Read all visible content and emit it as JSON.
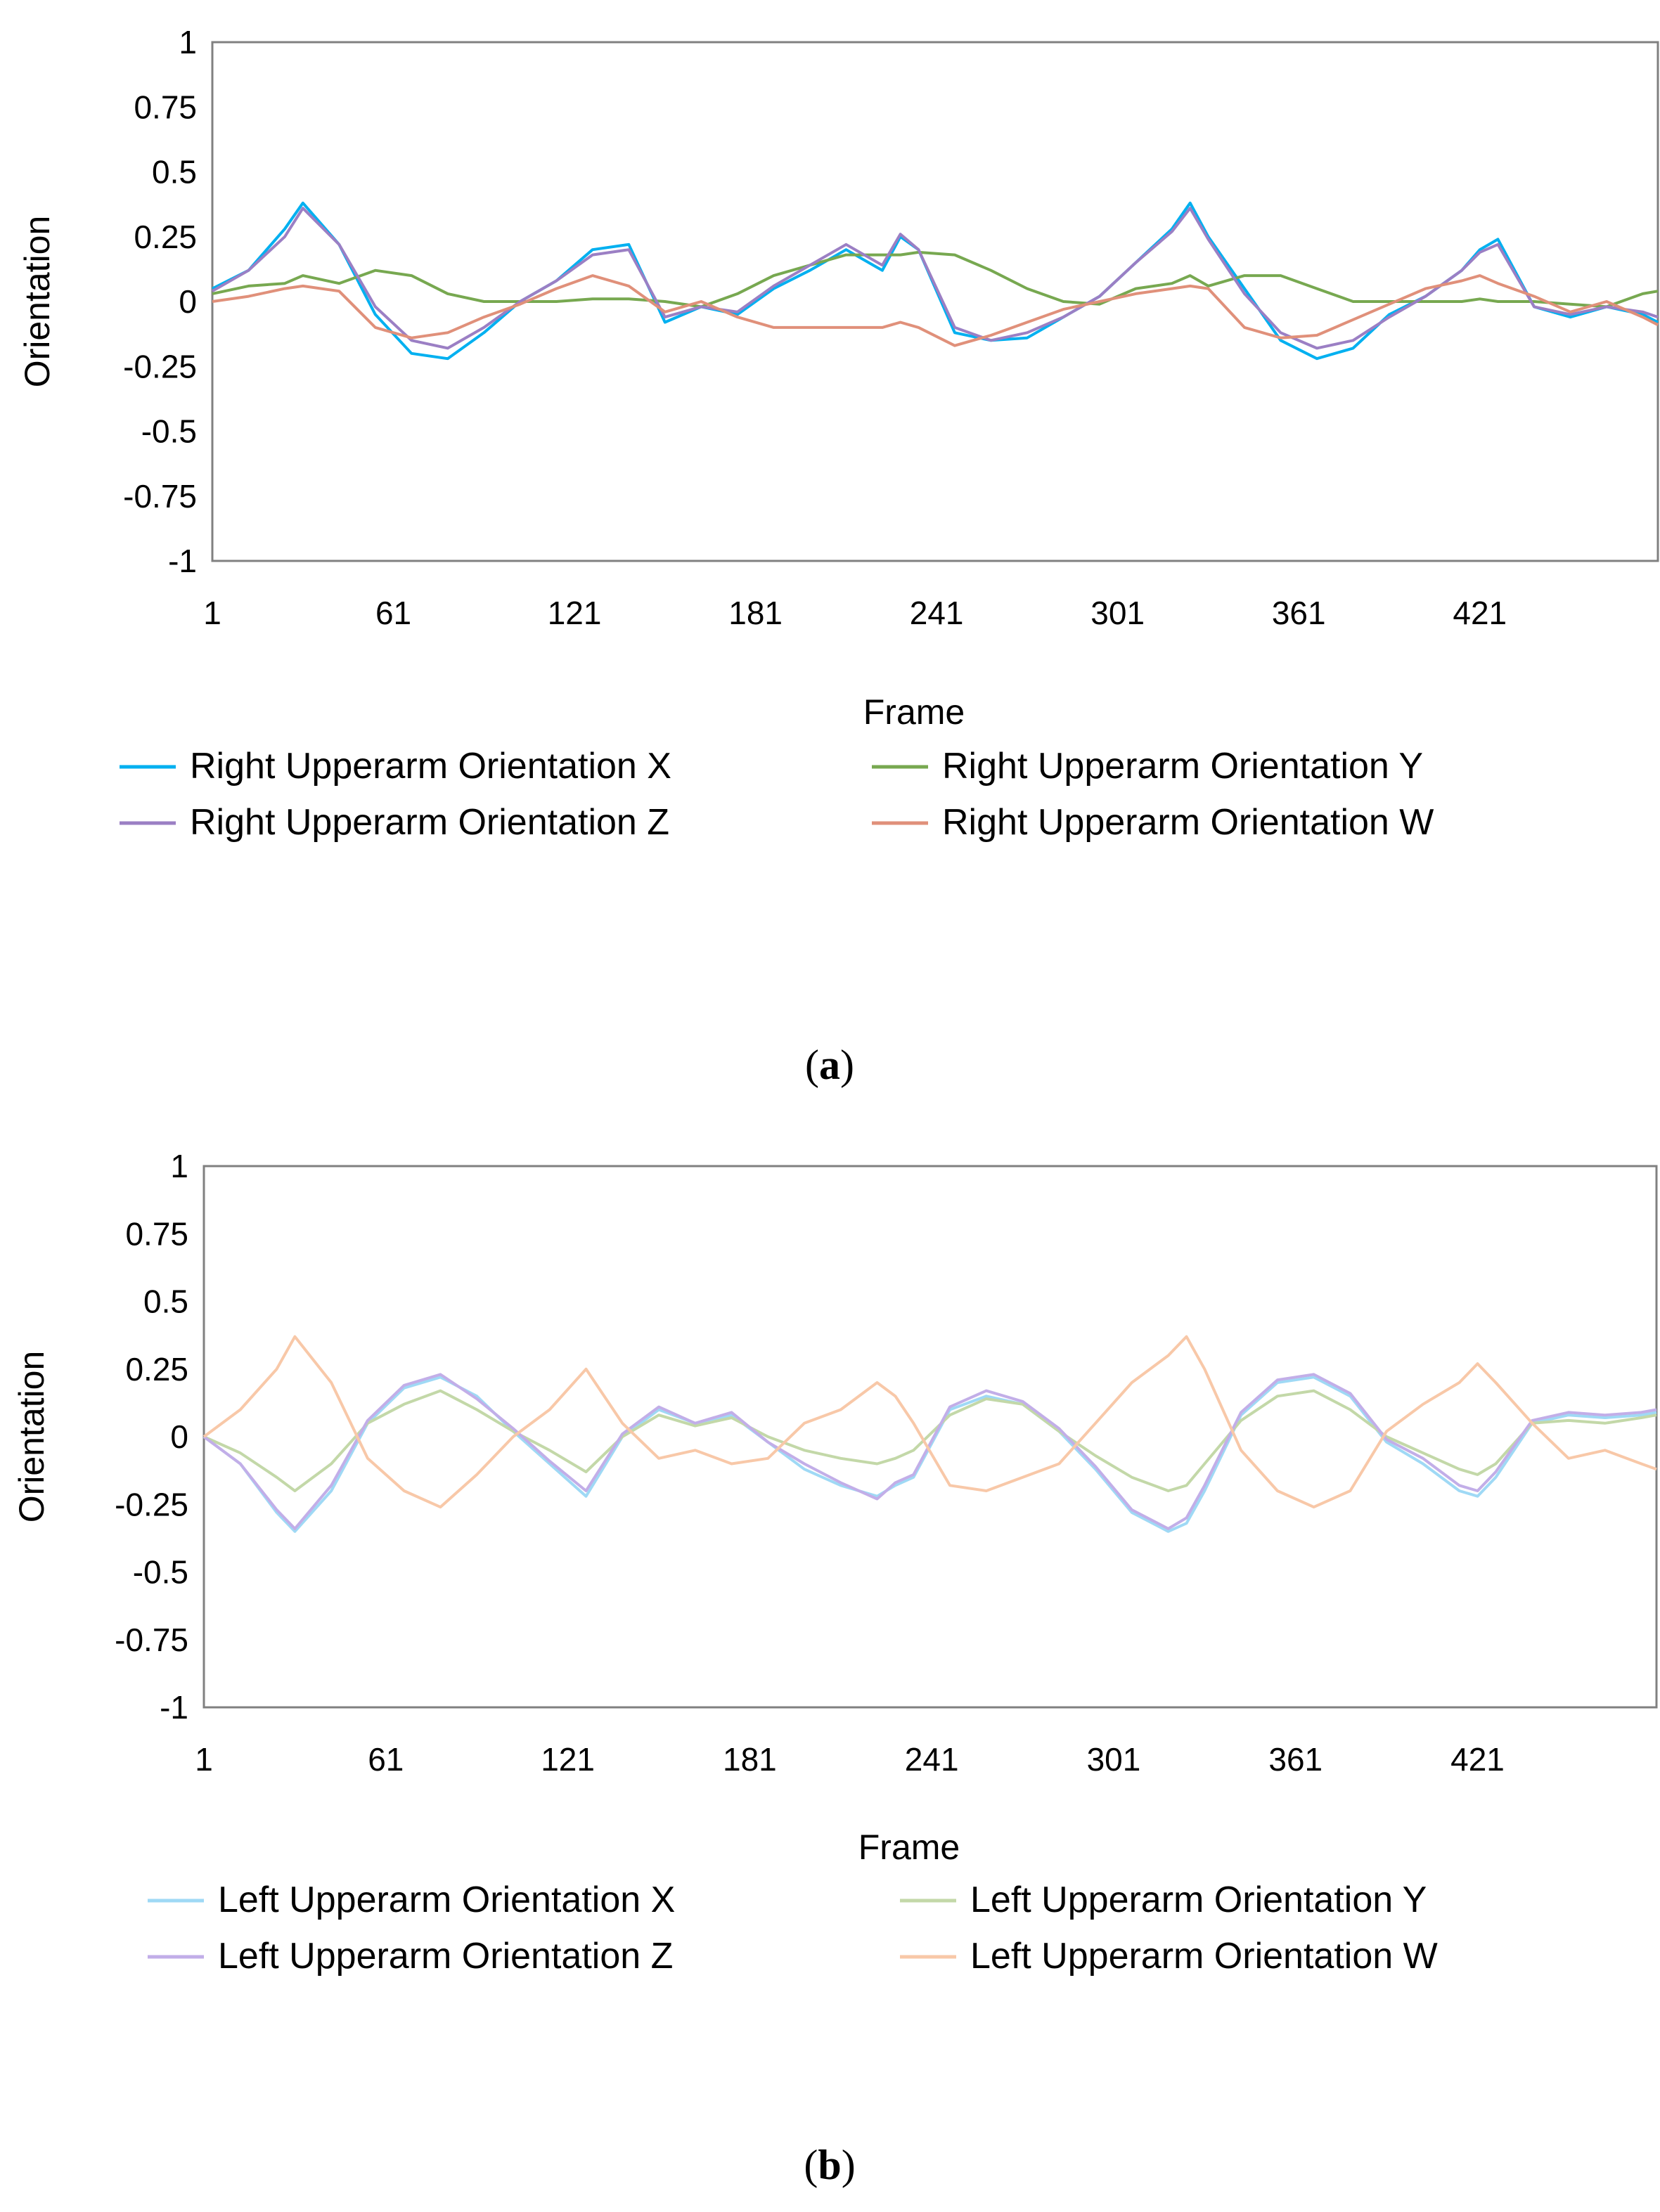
{
  "chart_data": [
    {
      "type": "line",
      "panel_label": "a",
      "title": "",
      "xlabel": "Frame",
      "ylabel": "Orientation",
      "ylim": [
        -1,
        1
      ],
      "xlim": [
        1,
        480
      ],
      "yticks": [
        "1",
        "0.75",
        "0.5",
        "0.25",
        "0",
        "-0.25",
        "-0.5",
        "-0.75",
        "-1"
      ],
      "xticks": [
        "1",
        "61",
        "121",
        "181",
        "241",
        "301",
        "361",
        "421"
      ],
      "legend_position": "bottom",
      "x": [
        1,
        13,
        25,
        31,
        43,
        55,
        67,
        79,
        91,
        103,
        115,
        127,
        139,
        151,
        163,
        175,
        187,
        199,
        211,
        223,
        229,
        235,
        247,
        259,
        271,
        283,
        295,
        307,
        319,
        325,
        331,
        343,
        355,
        367,
        379,
        391,
        403,
        415,
        421,
        427,
        439,
        451,
        463,
        475,
        480
      ],
      "series": [
        {
          "name": "Right Upperarm Orientation X",
          "color": "#00b0f0",
          "values": [
            0.05,
            0.12,
            0.28,
            0.38,
            0.22,
            -0.05,
            -0.2,
            -0.22,
            -0.12,
            0.0,
            0.08,
            0.2,
            0.22,
            -0.08,
            -0.02,
            -0.05,
            0.05,
            0.12,
            0.2,
            0.12,
            0.25,
            0.2,
            -0.12,
            -0.15,
            -0.14,
            -0.06,
            0.02,
            0.15,
            0.28,
            0.38,
            0.25,
            0.05,
            -0.15,
            -0.22,
            -0.18,
            -0.05,
            0.02,
            0.12,
            0.2,
            0.24,
            -0.02,
            -0.06,
            -0.02,
            -0.05,
            -0.08
          ]
        },
        {
          "name": "Right Upperarm Orientation Y",
          "color": "#77a850",
          "values": [
            0.03,
            0.06,
            0.07,
            0.1,
            0.07,
            0.12,
            0.1,
            0.03,
            0.0,
            0.0,
            0.0,
            0.01,
            0.01,
            0.0,
            -0.02,
            0.03,
            0.1,
            0.14,
            0.18,
            0.18,
            0.18,
            0.19,
            0.18,
            0.12,
            0.05,
            0.0,
            -0.01,
            0.05,
            0.07,
            0.1,
            0.06,
            0.1,
            0.1,
            0.05,
            0.0,
            0.0,
            0.0,
            0.0,
            0.01,
            0.0,
            0.0,
            -0.01,
            -0.02,
            0.03,
            0.04
          ]
        },
        {
          "name": "Right Upperarm Orientation Z",
          "color": "#9b7fc4",
          "values": [
            0.04,
            0.12,
            0.25,
            0.36,
            0.22,
            -0.02,
            -0.15,
            -0.18,
            -0.1,
            0.0,
            0.08,
            0.18,
            0.2,
            -0.06,
            -0.02,
            -0.04,
            0.06,
            0.14,
            0.22,
            0.14,
            0.26,
            0.2,
            -0.1,
            -0.15,
            -0.12,
            -0.06,
            0.02,
            0.15,
            0.27,
            0.36,
            0.24,
            0.03,
            -0.12,
            -0.18,
            -0.15,
            -0.06,
            0.02,
            0.12,
            0.19,
            0.22,
            -0.02,
            -0.05,
            -0.02,
            -0.04,
            -0.06
          ]
        },
        {
          "name": "Right Upperarm Orientation W",
          "color": "#e0907a",
          "values": [
            0.0,
            0.02,
            0.05,
            0.06,
            0.04,
            -0.1,
            -0.14,
            -0.12,
            -0.06,
            -0.01,
            0.05,
            0.1,
            0.06,
            -0.04,
            0.0,
            -0.06,
            -0.1,
            -0.1,
            -0.1,
            -0.1,
            -0.08,
            -0.1,
            -0.17,
            -0.13,
            -0.08,
            -0.03,
            0.0,
            0.03,
            0.05,
            0.06,
            0.05,
            -0.1,
            -0.14,
            -0.13,
            -0.07,
            -0.01,
            0.05,
            0.08,
            0.1,
            0.07,
            0.02,
            -0.04,
            0.0,
            -0.06,
            -0.09
          ]
        }
      ]
    },
    {
      "type": "line",
      "panel_label": "b",
      "title": "",
      "xlabel": "Frame",
      "ylabel": "Orientation",
      "ylim": [
        -1,
        1
      ],
      "xlim": [
        1,
        480
      ],
      "yticks": [
        "1",
        "0.75",
        "0.5",
        "0.25",
        "0",
        "-0.25",
        "-0.5",
        "-0.75",
        "-1"
      ],
      "xticks": [
        "1",
        "61",
        "121",
        "181",
        "241",
        "301",
        "361",
        "421"
      ],
      "legend_position": "bottom",
      "x": [
        1,
        13,
        25,
        31,
        43,
        55,
        67,
        79,
        91,
        103,
        115,
        127,
        139,
        151,
        163,
        175,
        187,
        199,
        211,
        223,
        229,
        235,
        247,
        259,
        271,
        283,
        295,
        307,
        319,
        325,
        331,
        343,
        355,
        367,
        379,
        391,
        403,
        415,
        421,
        427,
        439,
        451,
        463,
        475,
        480
      ],
      "series": [
        {
          "name": "Left Upperarm Orientation X",
          "color": "#9fd9f5",
          "values": [
            0.0,
            -0.1,
            -0.28,
            -0.35,
            -0.2,
            0.05,
            0.18,
            0.22,
            0.15,
            0.02,
            -0.1,
            -0.22,
            0.0,
            0.1,
            0.05,
            0.08,
            -0.02,
            -0.12,
            -0.18,
            -0.22,
            -0.18,
            -0.15,
            0.1,
            0.15,
            0.12,
            0.02,
            -0.12,
            -0.28,
            -0.35,
            -0.32,
            -0.2,
            0.08,
            0.2,
            0.22,
            0.15,
            -0.02,
            -0.1,
            -0.2,
            -0.22,
            -0.15,
            0.05,
            0.08,
            0.07,
            0.08,
            0.09
          ]
        },
        {
          "name": "Left Upperarm Orientation Y",
          "color": "#c3d8a8",
          "values": [
            0.0,
            -0.06,
            -0.15,
            -0.2,
            -0.1,
            0.05,
            0.12,
            0.17,
            0.1,
            0.02,
            -0.05,
            -0.13,
            0.0,
            0.08,
            0.04,
            0.07,
            0.0,
            -0.05,
            -0.08,
            -0.1,
            -0.08,
            -0.05,
            0.08,
            0.14,
            0.12,
            0.02,
            -0.07,
            -0.15,
            -0.2,
            -0.18,
            -0.1,
            0.06,
            0.15,
            0.17,
            0.1,
            0.0,
            -0.06,
            -0.12,
            -0.14,
            -0.1,
            0.05,
            0.06,
            0.05,
            0.07,
            0.08
          ]
        },
        {
          "name": "Left Upperarm Orientation Z",
          "color": "#c2aee8",
          "values": [
            0.0,
            -0.1,
            -0.27,
            -0.34,
            -0.18,
            0.06,
            0.19,
            0.23,
            0.14,
            0.03,
            -0.09,
            -0.2,
            0.01,
            0.11,
            0.05,
            0.09,
            -0.02,
            -0.1,
            -0.17,
            -0.23,
            -0.17,
            -0.14,
            0.11,
            0.17,
            0.13,
            0.03,
            -0.11,
            -0.27,
            -0.34,
            -0.3,
            -0.18,
            0.09,
            0.21,
            0.23,
            0.16,
            -0.01,
            -0.08,
            -0.18,
            -0.2,
            -0.13,
            0.06,
            0.09,
            0.08,
            0.09,
            0.1
          ]
        },
        {
          "name": "Left Upperarm Orientation W",
          "color": "#f8c8a8",
          "values": [
            0.0,
            0.1,
            0.25,
            0.37,
            0.2,
            -0.08,
            -0.2,
            -0.26,
            -0.14,
            0.0,
            0.1,
            0.25,
            0.05,
            -0.08,
            -0.05,
            -0.1,
            -0.08,
            0.05,
            0.1,
            0.2,
            0.15,
            0.05,
            -0.18,
            -0.2,
            -0.15,
            -0.1,
            0.05,
            0.2,
            0.3,
            0.37,
            0.25,
            -0.05,
            -0.2,
            -0.26,
            -0.2,
            0.02,
            0.12,
            0.2,
            0.27,
            0.2,
            0.05,
            -0.08,
            -0.05,
            -0.1,
            -0.12
          ]
        }
      ]
    }
  ]
}
